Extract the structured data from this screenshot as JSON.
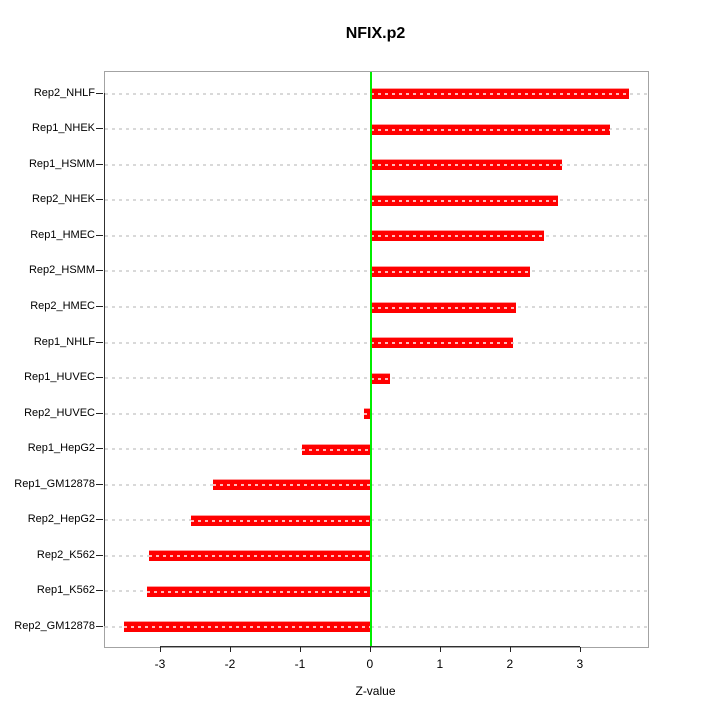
{
  "chart": {
    "title": "NFIX.p2",
    "xlabel": "Z-value"
  },
  "chart_data": {
    "type": "bar",
    "orientation": "horizontal",
    "title": "NFIX.p2",
    "xlabel": "Z-value",
    "ylabel": "",
    "categories": [
      "Rep2_NHLF",
      "Rep1_NHEK",
      "Rep1_HSMM",
      "Rep2_NHEK",
      "Rep1_HMEC",
      "Rep2_HSMM",
      "Rep2_HMEC",
      "Rep1_NHLF",
      "Rep1_HUVEC",
      "Rep2_HUVEC",
      "Rep1_HepG2",
      "Rep1_GM12878",
      "Rep2_HepG2",
      "Rep2_K562",
      "Rep1_K562",
      "Rep2_GM12878"
    ],
    "values": [
      3.69,
      3.42,
      2.73,
      2.68,
      2.48,
      2.28,
      2.07,
      2.03,
      0.27,
      -0.1,
      -0.99,
      -2.25,
      -2.57,
      -3.17,
      -3.2,
      -3.53
    ],
    "xlim": [
      -3.8,
      3.96
    ],
    "xticks": [
      -3,
      -2,
      -1,
      0,
      1,
      2,
      3
    ],
    "bar_color": "#ff0000",
    "zero_line_color": "#00ee00",
    "gridline_color": "#d9d9d9",
    "grid": "dotted-horizontal-per-row",
    "legend": null
  }
}
